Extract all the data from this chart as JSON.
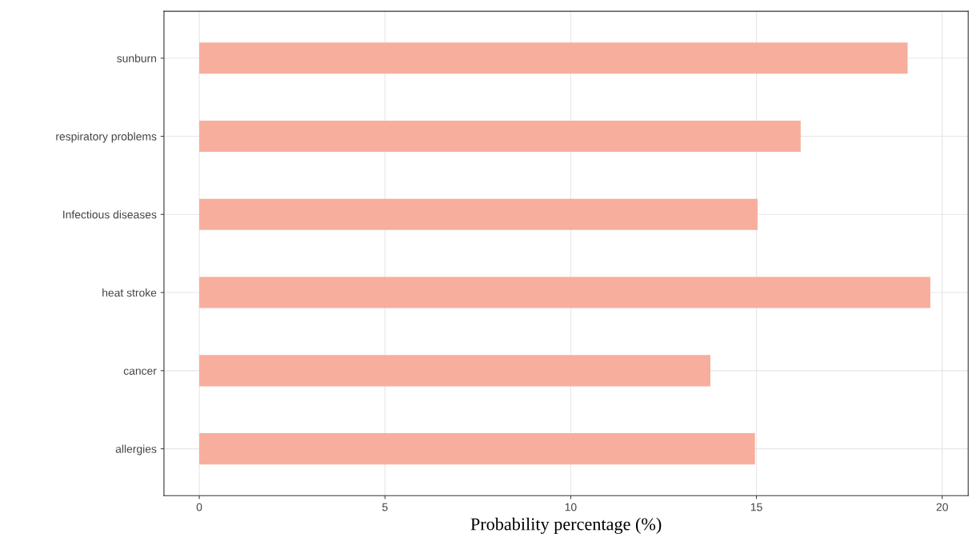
{
  "chart_data": {
    "type": "bar",
    "orientation": "horizontal",
    "xlabel": "Probability percentage (%)",
    "categories": [
      "sunburn",
      "respiratory problems",
      "Infectious diseases",
      "heat stroke",
      "cancer",
      "allergies"
    ],
    "values": [
      19.07,
      16.19,
      15.03,
      19.68,
      13.76,
      14.96
    ],
    "color": "#f8ae9c",
    "xlim": [
      -0.95,
      20.7
    ],
    "xticks": [
      0,
      5,
      10,
      15,
      20
    ],
    "grid": true
  }
}
